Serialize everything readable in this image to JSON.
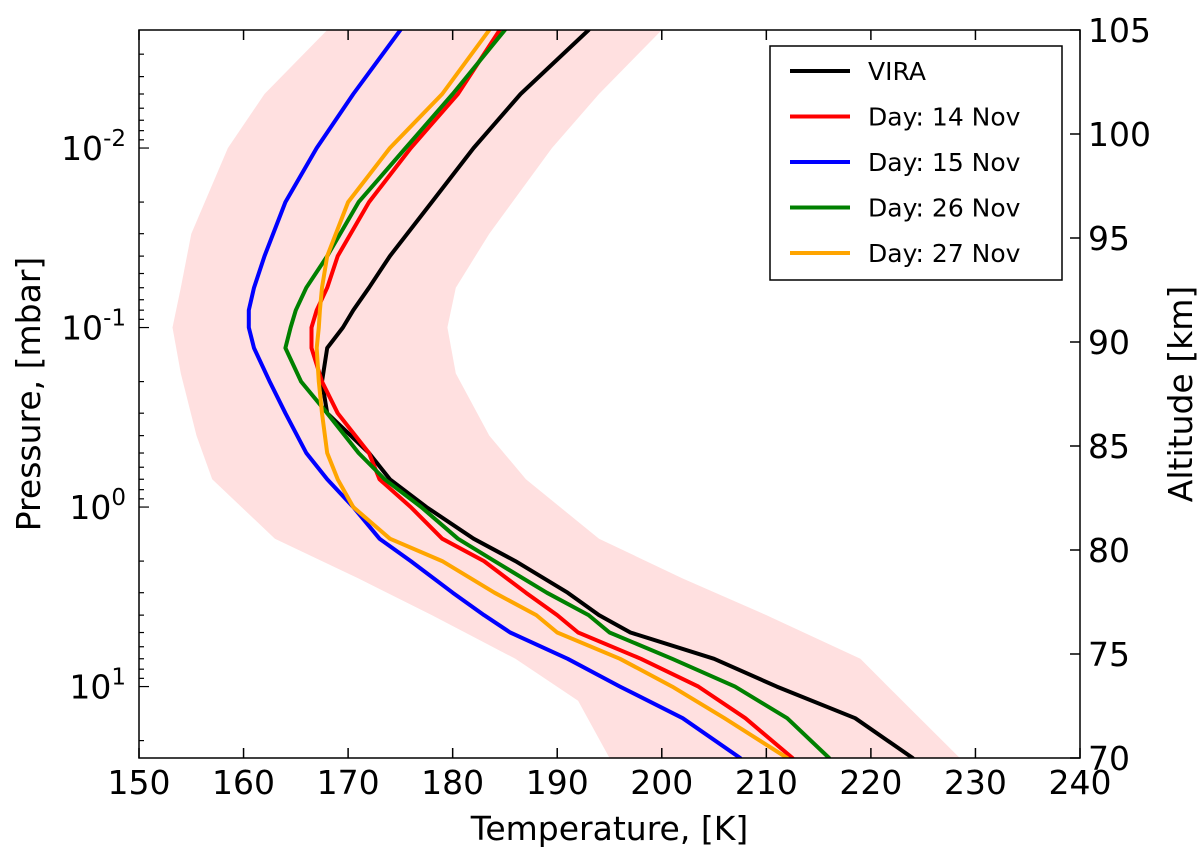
{
  "chart_data": {
    "type": "line",
    "xlabel": "Temperature, [K]",
    "ylabel": "Pressure, [mbar]",
    "y2label": "Altitude [km]",
    "xlim": [
      150,
      240
    ],
    "xticks": [
      150,
      160,
      170,
      180,
      190,
      200,
      210,
      220,
      230,
      240
    ],
    "ylim_mbar": [
      25,
      0.0022
    ],
    "yscale": "log",
    "y_tick_labels": [
      {
        "value": 0.01,
        "base": "10",
        "exp": "-2"
      },
      {
        "value": 0.1,
        "base": "10",
        "exp": "-1"
      },
      {
        "value": 1,
        "base": "10",
        "exp": "0"
      },
      {
        "value": 10,
        "base": "10",
        "exp": "1"
      }
    ],
    "y2lim_km": [
      70,
      105
    ],
    "y2ticks": [
      70,
      75,
      80,
      85,
      90,
      95,
      100,
      105
    ],
    "legend_position": "top-right",
    "band": {
      "color": "#ffe0e0",
      "left": [
        [
          0.0022,
          168
        ],
        [
          0.005,
          162
        ],
        [
          0.01,
          158.5
        ],
        [
          0.03,
          155
        ],
        [
          0.06,
          154
        ],
        [
          0.1,
          153.2
        ],
        [
          0.18,
          154
        ],
        [
          0.4,
          155.5
        ],
        [
          0.7,
          157
        ],
        [
          1.5,
          163
        ],
        [
          2.5,
          171
        ],
        [
          4,
          178
        ],
        [
          7,
          186
        ],
        [
          12,
          192
        ],
        [
          25,
          195
        ]
      ],
      "right": [
        [
          0.0022,
          200
        ],
        [
          0.005,
          194
        ],
        [
          0.01,
          189.5
        ],
        [
          0.03,
          183.5
        ],
        [
          0.06,
          180.3
        ],
        [
          0.1,
          179.5
        ],
        [
          0.18,
          180.3
        ],
        [
          0.4,
          183.5
        ],
        [
          0.7,
          187
        ],
        [
          1.5,
          194
        ],
        [
          2.5,
          202
        ],
        [
          4,
          210
        ],
        [
          7,
          219
        ],
        [
          12,
          223
        ],
        [
          25,
          228.5
        ]
      ]
    },
    "series": [
      {
        "name": "VIRA",
        "color": "#000000",
        "points": [
          [
            0.0022,
            193
          ],
          [
            0.005,
            186.5
          ],
          [
            0.01,
            182
          ],
          [
            0.02,
            178
          ],
          [
            0.04,
            174
          ],
          [
            0.06,
            172
          ],
          [
            0.08,
            170.5
          ],
          [
            0.1,
            169.5
          ],
          [
            0.13,
            168
          ],
          [
            0.2,
            167.5
          ],
          [
            0.3,
            168
          ],
          [
            0.5,
            172
          ],
          [
            0.7,
            174
          ],
          [
            1,
            177.5
          ],
          [
            1.5,
            182
          ],
          [
            2,
            186
          ],
          [
            3,
            191
          ],
          [
            4,
            194
          ],
          [
            5,
            197
          ],
          [
            7,
            205
          ],
          [
            10,
            211
          ],
          [
            15,
            218.5
          ],
          [
            25,
            224
          ]
        ]
      },
      {
        "name": "Day: 14 Nov",
        "color": "#ff0000",
        "points": [
          [
            0.0022,
            184.5
          ],
          [
            0.005,
            180.5
          ],
          [
            0.01,
            176
          ],
          [
            0.02,
            172
          ],
          [
            0.04,
            169
          ],
          [
            0.06,
            168
          ],
          [
            0.08,
            167
          ],
          [
            0.1,
            166.5
          ],
          [
            0.13,
            166.5
          ],
          [
            0.2,
            167.5
          ],
          [
            0.3,
            169
          ],
          [
            0.5,
            172
          ],
          [
            0.7,
            173
          ],
          [
            1,
            176
          ],
          [
            1.5,
            179
          ],
          [
            2,
            183
          ],
          [
            3,
            187
          ],
          [
            4,
            190
          ],
          [
            5,
            192
          ],
          [
            7,
            198
          ],
          [
            10,
            203.5
          ],
          [
            15,
            208
          ],
          [
            25,
            212.5
          ]
        ]
      },
      {
        "name": "Day: 15 Nov",
        "color": "#0000ff",
        "points": [
          [
            0.0022,
            175
          ],
          [
            0.005,
            170.5
          ],
          [
            0.01,
            167
          ],
          [
            0.02,
            164
          ],
          [
            0.04,
            162
          ],
          [
            0.06,
            161
          ],
          [
            0.08,
            160.5
          ],
          [
            0.1,
            160.5
          ],
          [
            0.13,
            161
          ],
          [
            0.2,
            162.5
          ],
          [
            0.3,
            164
          ],
          [
            0.5,
            166
          ],
          [
            0.7,
            168
          ],
          [
            1,
            170.5
          ],
          [
            1.5,
            173
          ],
          [
            2,
            176
          ],
          [
            3,
            180
          ],
          [
            4,
            183
          ],
          [
            5,
            185.5
          ],
          [
            7,
            191
          ],
          [
            10,
            196
          ],
          [
            15,
            202
          ],
          [
            25,
            207.5
          ]
        ]
      },
      {
        "name": "Day: 26 Nov",
        "color": "#008000",
        "points": [
          [
            0.0022,
            185
          ],
          [
            0.005,
            180
          ],
          [
            0.01,
            175.5
          ],
          [
            0.02,
            171
          ],
          [
            0.04,
            168
          ],
          [
            0.06,
            166
          ],
          [
            0.08,
            165
          ],
          [
            0.1,
            164.5
          ],
          [
            0.13,
            164
          ],
          [
            0.2,
            165.5
          ],
          [
            0.3,
            168
          ],
          [
            0.5,
            171
          ],
          [
            0.7,
            173.5
          ],
          [
            1,
            177
          ],
          [
            1.5,
            180.5
          ],
          [
            2,
            184
          ],
          [
            3,
            189
          ],
          [
            4,
            193
          ],
          [
            5,
            195
          ],
          [
            7,
            201
          ],
          [
            10,
            207
          ],
          [
            15,
            212
          ],
          [
            25,
            216
          ]
        ]
      },
      {
        "name": "Day: 27 Nov",
        "color": "#ffa500",
        "points": [
          [
            0.0022,
            183.5
          ],
          [
            0.005,
            179
          ],
          [
            0.01,
            174
          ],
          [
            0.02,
            170
          ],
          [
            0.04,
            168
          ],
          [
            0.06,
            167.5
          ],
          [
            0.08,
            167.3
          ],
          [
            0.1,
            167.2
          ],
          [
            0.13,
            167
          ],
          [
            0.2,
            167.2
          ],
          [
            0.3,
            167.5
          ],
          [
            0.5,
            168
          ],
          [
            0.7,
            169
          ],
          [
            1,
            170.5
          ],
          [
            1.5,
            174
          ],
          [
            2,
            179
          ],
          [
            3,
            184
          ],
          [
            4,
            188
          ],
          [
            5,
            190
          ],
          [
            7,
            196
          ],
          [
            10,
            201
          ],
          [
            15,
            206
          ],
          [
            25,
            212
          ]
        ]
      }
    ]
  }
}
